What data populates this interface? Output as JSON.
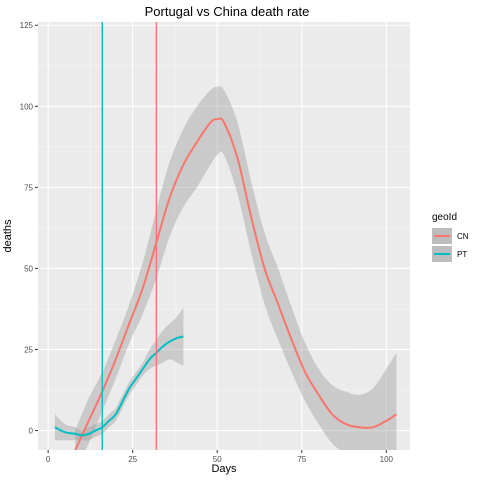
{
  "chart_data": {
    "type": "line",
    "title": "Portugal vs China death rate",
    "xlabel": "Days",
    "ylabel": "deaths",
    "xlim": [
      -3,
      107
    ],
    "ylim": [
      -6,
      126
    ],
    "x_ticks": [
      0,
      25,
      50,
      75,
      100
    ],
    "y_ticks": [
      0,
      25,
      50,
      75,
      100,
      125
    ],
    "grid": true,
    "legend": {
      "title": "geoId",
      "placement": "right"
    },
    "vlines": [
      {
        "x": 16,
        "color": "#00BFC4"
      },
      {
        "x": 32,
        "color": "#F8766D"
      }
    ],
    "series": [
      {
        "name": "CN",
        "color": "#F8766D",
        "x": [
          8,
          12,
          16,
          20,
          24,
          28,
          32,
          36,
          40,
          44,
          48,
          50,
          52,
          56,
          60,
          64,
          68,
          72,
          76,
          80,
          84,
          88,
          92,
          96,
          100,
          103
        ],
        "y": [
          -6,
          3,
          12,
          22,
          33,
          44,
          58,
          72,
          82,
          89,
          95,
          96,
          95,
          84,
          66,
          50,
          39,
          28,
          18,
          11,
          5,
          2,
          1,
          1,
          3,
          5
        ],
        "lower": [
          -12,
          -4,
          6,
          16,
          27,
          36,
          47,
          60,
          69,
          75,
          82,
          85,
          85,
          73,
          55,
          39,
          28,
          18,
          9,
          2,
          -4,
          -7,
          -8,
          -8,
          -7,
          -6
        ],
        "upper": [
          0,
          10,
          18,
          28,
          39,
          52,
          68,
          83,
          93,
          100,
          105,
          106,
          105,
          95,
          77,
          61,
          50,
          38,
          27,
          19,
          14,
          12,
          11,
          13,
          19,
          24
        ]
      },
      {
        "name": "PT",
        "color": "#00BFC4",
        "x": [
          2,
          5,
          8,
          10,
          12,
          14,
          16,
          18,
          20,
          22,
          24,
          26,
          28,
          30,
          32,
          34,
          36,
          38,
          40
        ],
        "y": [
          1,
          -0.5,
          -1,
          -1.5,
          -1,
          0,
          1,
          3,
          5,
          9,
          13,
          16,
          19,
          22,
          24,
          26,
          27.5,
          28.5,
          29
        ],
        "lower": [
          -3,
          -3,
          -3,
          -3,
          -3,
          -2,
          -1,
          1,
          3,
          7,
          11,
          14,
          17,
          19,
          20,
          21,
          22,
          21,
          20
        ],
        "upper": [
          5,
          2,
          1,
          0,
          1,
          2,
          3,
          5,
          7,
          11,
          15,
          18,
          21,
          25,
          28,
          31,
          33,
          35,
          38
        ]
      }
    ]
  }
}
